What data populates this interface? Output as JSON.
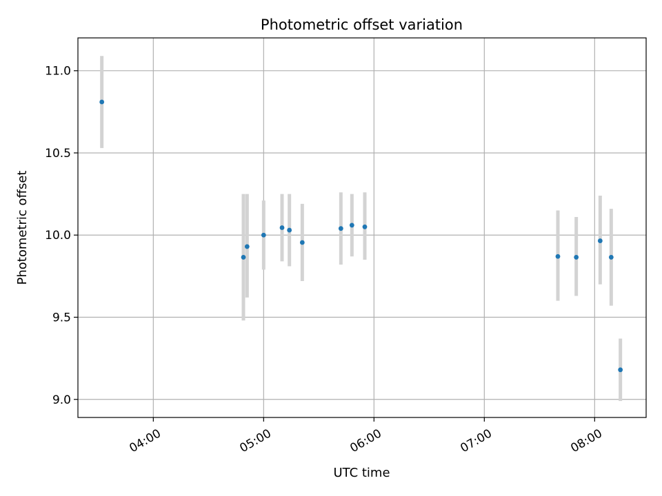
{
  "chart_data": {
    "type": "scatter",
    "title": "Photometric offset variation",
    "xlabel": "UTC time",
    "ylabel": "Photometric offset",
    "x_ticks": [
      "04:00",
      "05:00",
      "06:00",
      "07:00",
      "08:00"
    ],
    "y_ticks": [
      "9.0",
      "9.5",
      "10.0",
      "10.5",
      "11.0"
    ],
    "xlim": [
      "03:19",
      "08:28"
    ],
    "ylim": [
      8.89,
      11.2
    ],
    "grid": true,
    "marker_color": "#1f77b4",
    "errorbar_color": "#d3d3d3",
    "points": [
      {
        "x": "03:32",
        "y": 10.81,
        "yerr_low": 10.53,
        "yerr_high": 11.09
      },
      {
        "x": "04:49",
        "y": 9.865,
        "yerr_low": 9.48,
        "yerr_high": 10.25
      },
      {
        "x": "04:51",
        "y": 9.93,
        "yerr_low": 9.62,
        "yerr_high": 10.25
      },
      {
        "x": "05:00",
        "y": 10.0,
        "yerr_low": 9.79,
        "yerr_high": 10.21
      },
      {
        "x": "05:10",
        "y": 10.045,
        "yerr_low": 9.84,
        "yerr_high": 10.25
      },
      {
        "x": "05:14",
        "y": 10.03,
        "yerr_low": 9.81,
        "yerr_high": 10.25
      },
      {
        "x": "05:21",
        "y": 9.955,
        "yerr_low": 9.72,
        "yerr_high": 10.19
      },
      {
        "x": "05:42",
        "y": 10.04,
        "yerr_low": 9.82,
        "yerr_high": 10.26
      },
      {
        "x": "05:48",
        "y": 10.06,
        "yerr_low": 9.87,
        "yerr_high": 10.25
      },
      {
        "x": "05:55",
        "y": 10.05,
        "yerr_low": 9.85,
        "yerr_high": 10.26
      },
      {
        "x": "07:40",
        "y": 9.87,
        "yerr_low": 9.6,
        "yerr_high": 10.15
      },
      {
        "x": "07:50",
        "y": 9.865,
        "yerr_low": 9.63,
        "yerr_high": 10.11
      },
      {
        "x": "08:03",
        "y": 9.965,
        "yerr_low": 9.7,
        "yerr_high": 10.24
      },
      {
        "x": "08:09",
        "y": 9.865,
        "yerr_low": 9.57,
        "yerr_high": 10.16
      },
      {
        "x": "08:14",
        "y": 9.18,
        "yerr_low": 8.99,
        "yerr_high": 9.37
      }
    ]
  }
}
